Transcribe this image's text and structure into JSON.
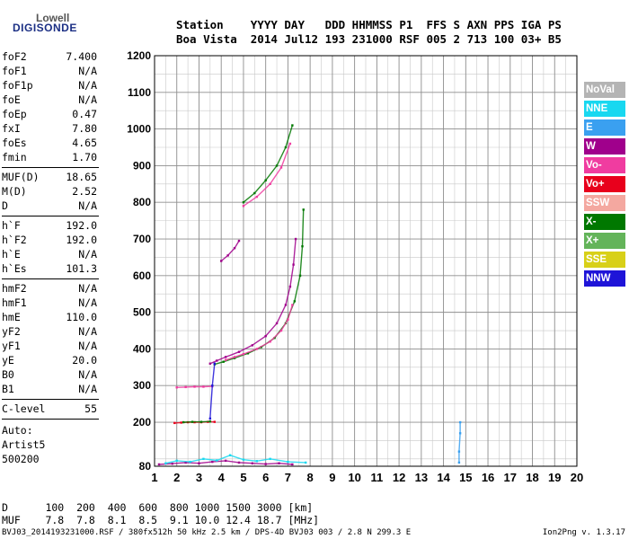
{
  "logo": {
    "line1": "Lowell",
    "line2": "DIGISONDE"
  },
  "header": {
    "row1": "Station    YYYY DAY   DDD HHMMSS P1  FFS S AXN PPS IGA PS",
    "row2": "Boa Vista  2014 Jul12 193 231000 RSF 005 2 713 100 03+ B5"
  },
  "params": [
    {
      "group": [
        {
          "k": "foF2",
          "v": "7.400"
        },
        {
          "k": "foF1",
          "v": "N/A"
        },
        {
          "k": "foF1p",
          "v": "N/A"
        },
        {
          "k": "foE",
          "v": "N/A"
        },
        {
          "k": "foEp",
          "v": "0.47"
        },
        {
          "k": "fxI",
          "v": "7.80"
        },
        {
          "k": "foEs",
          "v": "4.65"
        },
        {
          "k": "fmin",
          "v": "1.70"
        }
      ]
    },
    {
      "group": [
        {
          "k": "MUF(D)",
          "v": "18.65"
        },
        {
          "k": "M(D)",
          "v": "2.52"
        },
        {
          "k": "D",
          "v": "N/A"
        }
      ]
    },
    {
      "group": [
        {
          "k": "h`F",
          "v": "192.0"
        },
        {
          "k": "h`F2",
          "v": "192.0"
        },
        {
          "k": "h`E",
          "v": "N/A"
        },
        {
          "k": "h`Es",
          "v": "101.3"
        }
      ]
    },
    {
      "group": [
        {
          "k": "hmF2",
          "v": "N/A"
        },
        {
          "k": "hmF1",
          "v": "N/A"
        },
        {
          "k": "hmE",
          "v": "110.0"
        },
        {
          "k": "yF2",
          "v": "N/A"
        },
        {
          "k": "yF1",
          "v": "N/A"
        },
        {
          "k": "yE",
          "v": "20.0"
        },
        {
          "k": "B0",
          "v": "N/A"
        },
        {
          "k": "B1",
          "v": "N/A"
        }
      ]
    },
    {
      "group": [
        {
          "k": "C-level",
          "v": "55"
        }
      ]
    }
  ],
  "autoscale": {
    "l1": "Auto:",
    "l2": "Artist5",
    "l3": "500200"
  },
  "legend": [
    {
      "label": "NoVal",
      "color": "#b4b4b4"
    },
    {
      "label": "NNE",
      "color": "#18d8f0"
    },
    {
      "label": "E",
      "color": "#3aa0f0"
    },
    {
      "label": "W",
      "color": "#a0008c"
    },
    {
      "label": "Vo-",
      "color": "#f03ca0"
    },
    {
      "label": "Vo+",
      "color": "#e8001c"
    },
    {
      "label": "SSW",
      "color": "#f4a8a0"
    },
    {
      "label": "X-",
      "color": "#007800"
    },
    {
      "label": "X+",
      "color": "#64b45a"
    },
    {
      "label": "SSE",
      "color": "#d8d018"
    },
    {
      "label": "NNW",
      "color": "#1e14d8"
    }
  ],
  "footer": {
    "d_row": "D      100  200  400  600  800 1000 1500 3000 [km]",
    "muf_row": "MUF    7.8  7.8  8.1  8.5  9.1 10.0 12.4 18.7 [MHz]",
    "file_line": "BVJ03_2014193231000.RSF / 380fx512h 50 kHz 2.5 km / DPS-4D BVJ03 003 / 2.8 N 299.3 E",
    "version": "Ion2Png v. 1.3.17"
  },
  "chart_data": {
    "type": "scatter",
    "xlim": [
      1,
      20
    ],
    "ylim": [
      80,
      1200
    ],
    "xticks": [
      1,
      2,
      3,
      4,
      5,
      6,
      7,
      8,
      9,
      10,
      11,
      12,
      13,
      14,
      15,
      16,
      17,
      18,
      19,
      20
    ],
    "yticks": [
      80,
      200,
      300,
      400,
      500,
      600,
      700,
      800,
      900,
      1000,
      1100,
      1200
    ],
    "grid": true,
    "legend_position": "right",
    "series": [
      {
        "name": "W",
        "color_key": "W",
        "x": [
          3.5,
          3.8,
          4.2,
          4.8,
          5.4,
          6.0,
          6.5,
          6.9,
          7.1,
          7.25,
          7.35
        ],
        "y": [
          360,
          368,
          378,
          392,
          410,
          435,
          470,
          520,
          570,
          630,
          700
        ]
      },
      {
        "name": "X-",
        "color_key": "X-",
        "x": [
          3.7,
          4.1,
          4.6,
          5.2,
          5.8,
          6.4,
          6.9,
          7.3,
          7.55,
          7.65,
          7.7
        ],
        "y": [
          358,
          365,
          375,
          388,
          405,
          430,
          470,
          530,
          600,
          680,
          780
        ]
      },
      {
        "name": "Vo-",
        "color_key": "Vo-",
        "x": [
          4.2,
          4.6,
          5.0,
          5.6,
          6.2,
          6.7,
          7.0,
          7.2
        ],
        "y": [
          370,
          378,
          386,
          400,
          420,
          450,
          480,
          520
        ]
      },
      {
        "name": "X-",
        "color_key": "X-",
        "x": [
          5.0,
          5.5,
          6.0,
          6.5,
          6.9,
          7.2
        ],
        "y": [
          800,
          825,
          860,
          900,
          950,
          1010
        ]
      },
      {
        "name": "Vo-",
        "color_key": "Vo-",
        "x": [
          5.0,
          5.6,
          6.2,
          6.7,
          7.1
        ],
        "y": [
          790,
          815,
          850,
          895,
          960
        ]
      },
      {
        "name": "W",
        "color_key": "W",
        "x": [
          4.0,
          4.3,
          4.6,
          4.8
        ],
        "y": [
          640,
          655,
          675,
          695
        ]
      },
      {
        "name": "Vo-",
        "color_key": "Vo-",
        "x": [
          2.0,
          2.4,
          2.8,
          3.2,
          3.6
        ],
        "y": [
          295,
          296,
          297,
          297,
          298
        ]
      },
      {
        "name": "Vo+",
        "color_key": "Vo+",
        "x": [
          1.9,
          2.2,
          2.5,
          2.8,
          3.1,
          3.4,
          3.7
        ],
        "y": [
          198,
          199,
          200,
          200,
          200,
          201,
          201
        ]
      },
      {
        "name": "X-",
        "color_key": "X-",
        "x": [
          2.3,
          2.7,
          3.1,
          3.5
        ],
        "y": [
          200,
          201,
          201,
          202
        ]
      },
      {
        "name": "NNW",
        "color_key": "NNW",
        "x": [
          3.5,
          3.6,
          3.7
        ],
        "y": [
          210,
          300,
          360
        ]
      },
      {
        "name": "W",
        "color_key": "W",
        "x": [
          1.2,
          1.8,
          2.4,
          3.0,
          3.6,
          4.2,
          4.8,
          5.4,
          6.0,
          6.6,
          7.2
        ],
        "y": [
          85,
          87,
          90,
          88,
          92,
          95,
          90,
          88,
          86,
          88,
          85
        ]
      },
      {
        "name": "NNE",
        "color_key": "NNE",
        "x": [
          1.5,
          2.0,
          2.6,
          3.2,
          3.8,
          4.4,
          5.0,
          5.6,
          6.2,
          7.0,
          7.8
        ],
        "y": [
          88,
          95,
          92,
          100,
          96,
          110,
          98,
          94,
          100,
          92,
          90
        ]
      },
      {
        "name": "E",
        "color_key": "E",
        "x": [
          14.7,
          14.7,
          14.75,
          14.75
        ],
        "y": [
          90,
          120,
          170,
          200
        ]
      }
    ]
  }
}
